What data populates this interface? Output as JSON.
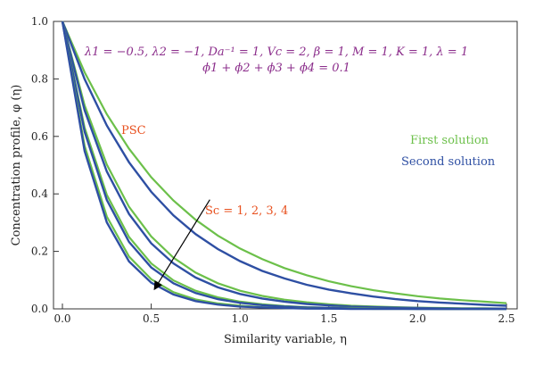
{
  "chart_data": {
    "type": "line",
    "xlabel": "Similarity variable, η",
    "ylabel": "Concentration profile, φ (η)",
    "xlim": [
      0,
      2.5
    ],
    "ylim": [
      0,
      1.0
    ],
    "x_ticks": [
      "0.0",
      "0.5",
      "1.0",
      "1.5",
      "2.0",
      "2.5"
    ],
    "y_ticks": [
      "0.0",
      "0.2",
      "0.4",
      "0.6",
      "0.8",
      "1.0"
    ],
    "grid": false,
    "legend": {
      "placement": "right",
      "entries": [
        {
          "label": "First solution",
          "color": "#6cc04a"
        },
        {
          "label": "Second solution",
          "color": "#2e4fa3"
        }
      ]
    },
    "parameters_line1": "λ1 = −0.5, λ2 = −1, Da⁻¹ = 1, Vc = 2, β = 1, M = 1, K = 1, λ = 1",
    "parameters_line2": "ϕ1 + ϕ2 + ϕ3 + ϕ4 = 0.1",
    "parameters_color": "#8b2d8b",
    "annotations": {
      "psc": "PSC",
      "sc_values": "Sc = 1, 2, 3, 4",
      "color": "#e8501e",
      "arrow": {
        "from": [
          0.83,
          0.38
        ],
        "to": [
          0.52,
          0.07
        ]
      }
    },
    "x": [
      0,
      0.125,
      0.25,
      0.375,
      0.5,
      0.625,
      0.75,
      0.875,
      1.0,
      1.125,
      1.25,
      1.375,
      1.5,
      1.625,
      1.75,
      1.875,
      2.0,
      2.125,
      2.25,
      2.375,
      2.5
    ],
    "series": [
      {
        "solution": "first",
        "values": [
          1.0,
          0.823,
          0.677,
          0.557,
          0.458,
          0.377,
          0.31,
          0.255,
          0.21,
          0.173,
          0.142,
          0.117,
          0.096,
          0.079,
          0.065,
          0.054,
          0.044,
          0.036,
          0.03,
          0.025,
          0.02
        ]
      },
      {
        "solution": "second",
        "values": [
          1.0,
          0.799,
          0.638,
          0.51,
          0.407,
          0.325,
          0.26,
          0.208,
          0.166,
          0.132,
          0.106,
          0.084,
          0.067,
          0.054,
          0.043,
          0.034,
          0.027,
          0.022,
          0.018,
          0.014,
          0.011
        ]
      },
      {
        "solution": "first",
        "values": [
          1.0,
          0.708,
          0.502,
          0.355,
          0.252,
          0.178,
          0.126,
          0.089,
          0.063,
          0.045,
          0.032,
          0.023,
          0.016,
          0.011,
          0.008,
          0.006,
          0.004,
          0.003,
          0.002,
          0.002,
          0.001
        ]
      },
      {
        "solution": "second",
        "values": [
          1.0,
          0.691,
          0.478,
          0.33,
          0.228,
          0.158,
          0.109,
          0.075,
          0.052,
          0.036,
          0.025,
          0.017,
          0.012,
          0.008,
          0.006,
          0.004,
          0.003,
          0.002,
          0.001,
          0.001,
          0.001
        ]
      },
      {
        "solution": "first",
        "values": [
          1.0,
          0.63,
          0.397,
          0.25,
          0.158,
          0.099,
          0.063,
          0.04,
          0.025,
          0.016,
          0.01,
          0.006,
          0.004,
          0.003,
          0.002,
          0.001,
          0.001,
          0.0,
          0.0,
          0.0,
          0.0
        ]
      },
      {
        "solution": "second",
        "values": [
          1.0,
          0.616,
          0.379,
          0.233,
          0.144,
          0.089,
          0.055,
          0.034,
          0.021,
          0.013,
          0.008,
          0.005,
          0.003,
          0.002,
          0.001,
          0.001,
          0.0,
          0.0,
          0.0,
          0.0,
          0.0
        ]
      },
      {
        "solution": "first",
        "values": [
          1.0,
          0.567,
          0.321,
          0.182,
          0.103,
          0.058,
          0.033,
          0.019,
          0.011,
          0.006,
          0.003,
          0.002,
          0.001,
          0.001,
          0.0,
          0.0,
          0.0,
          0.0,
          0.0,
          0.0,
          0.0
        ]
      },
      {
        "solution": "second",
        "values": [
          1.0,
          0.549,
          0.301,
          0.165,
          0.091,
          0.05,
          0.027,
          0.015,
          0.008,
          0.005,
          0.003,
          0.001,
          0.001,
          0.0,
          0.0,
          0.0,
          0.0,
          0.0,
          0.0,
          0.0,
          0.0
        ]
      }
    ]
  }
}
